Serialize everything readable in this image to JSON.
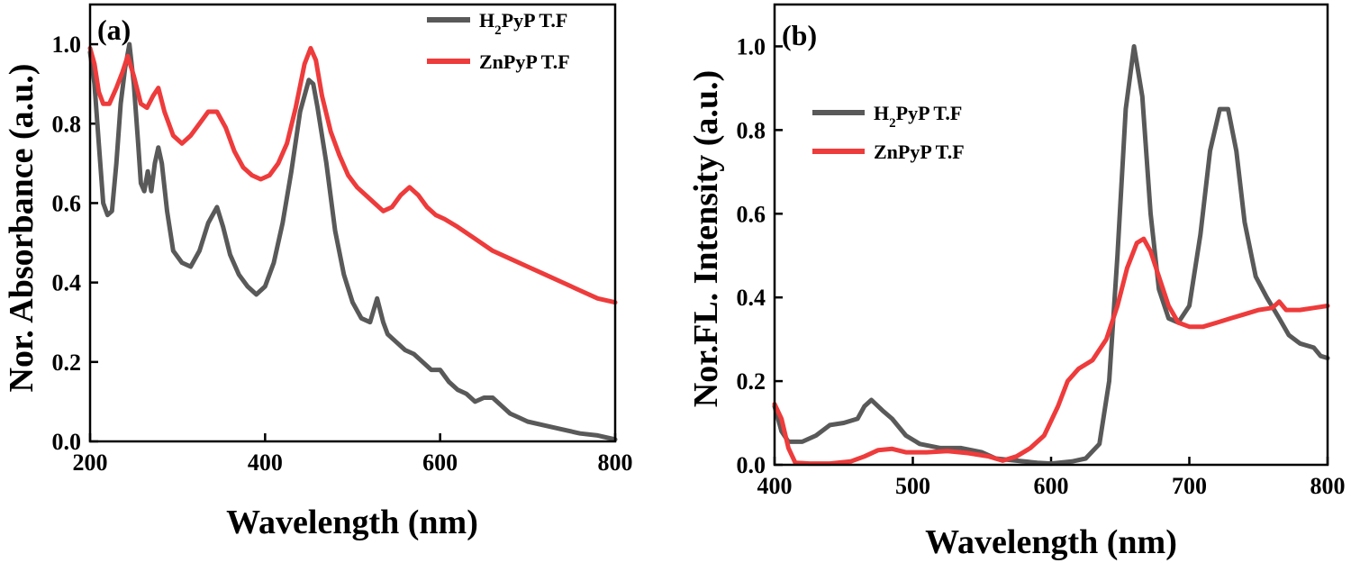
{
  "colors": {
    "h2pyp": "#595959",
    "znpyp": "#ee3b3b",
    "axis": "#000000"
  },
  "chart_data": [
    {
      "type": "line",
      "panel_label": "(a)",
      "xlabel": "Wavelength (nm)",
      "ylabel": "Nor. Absorbance (a.u.)",
      "xlim": [
        200,
        800
      ],
      "ylim": [
        0,
        1.1
      ],
      "xticks": [
        200,
        400,
        600,
        800
      ],
      "xtick_labels": [
        "200",
        "400",
        "600",
        "800"
      ],
      "yticks": [
        0,
        0.2,
        0.4,
        0.6,
        0.8,
        1.0
      ],
      "ytick_labels": [
        "0.0",
        "0.2",
        "0.4",
        "0.6",
        "0.8",
        "1.0"
      ],
      "grid": false,
      "legend_position": "top-right",
      "legend": [
        "H2PyP T.F",
        "ZnPyP T.F"
      ],
      "series": [
        {
          "name": "H2PyP T.F",
          "color": "#595959",
          "points": [
            [
              200,
              0.98
            ],
            [
              205,
              0.9
            ],
            [
              210,
              0.75
            ],
            [
              215,
              0.6
            ],
            [
              220,
              0.57
            ],
            [
              225,
              0.58
            ],
            [
              230,
              0.7
            ],
            [
              235,
              0.85
            ],
            [
              240,
              0.94
            ],
            [
              245,
              1.0
            ],
            [
              250,
              0.9
            ],
            [
              255,
              0.75
            ],
            [
              258,
              0.65
            ],
            [
              262,
              0.63
            ],
            [
              266,
              0.68
            ],
            [
              270,
              0.63
            ],
            [
              274,
              0.7
            ],
            [
              278,
              0.74
            ],
            [
              282,
              0.7
            ],
            [
              288,
              0.58
            ],
            [
              295,
              0.48
            ],
            [
              305,
              0.45
            ],
            [
              315,
              0.44
            ],
            [
              325,
              0.48
            ],
            [
              335,
              0.55
            ],
            [
              345,
              0.59
            ],
            [
              352,
              0.54
            ],
            [
              360,
              0.47
            ],
            [
              370,
              0.42
            ],
            [
              380,
              0.39
            ],
            [
              390,
              0.37
            ],
            [
              400,
              0.39
            ],
            [
              410,
              0.45
            ],
            [
              420,
              0.55
            ],
            [
              430,
              0.68
            ],
            [
              440,
              0.83
            ],
            [
              450,
              0.91
            ],
            [
              455,
              0.9
            ],
            [
              460,
              0.84
            ],
            [
              470,
              0.7
            ],
            [
              480,
              0.53
            ],
            [
              490,
              0.42
            ],
            [
              500,
              0.35
            ],
            [
              510,
              0.31
            ],
            [
              520,
              0.3
            ],
            [
              528,
              0.36
            ],
            [
              535,
              0.3
            ],
            [
              540,
              0.27
            ],
            [
              550,
              0.25
            ],
            [
              560,
              0.23
            ],
            [
              570,
              0.22
            ],
            [
              580,
              0.2
            ],
            [
              590,
              0.18
            ],
            [
              600,
              0.18
            ],
            [
              610,
              0.15
            ],
            [
              620,
              0.13
            ],
            [
              630,
              0.12
            ],
            [
              640,
              0.1
            ],
            [
              650,
              0.11
            ],
            [
              660,
              0.11
            ],
            [
              670,
              0.09
            ],
            [
              680,
              0.07
            ],
            [
              690,
              0.06
            ],
            [
              700,
              0.05
            ],
            [
              720,
              0.04
            ],
            [
              740,
              0.03
            ],
            [
              760,
              0.02
            ],
            [
              780,
              0.015
            ],
            [
              800,
              0.005
            ]
          ]
        },
        {
          "name": "ZnPyP T.F",
          "color": "#ee3b3b",
          "points": [
            [
              200,
              0.99
            ],
            [
              205,
              0.95
            ],
            [
              210,
              0.88
            ],
            [
              215,
              0.85
            ],
            [
              222,
              0.85
            ],
            [
              230,
              0.89
            ],
            [
              237,
              0.93
            ],
            [
              243,
              0.97
            ],
            [
              250,
              0.92
            ],
            [
              258,
              0.85
            ],
            [
              265,
              0.84
            ],
            [
              272,
              0.87
            ],
            [
              278,
              0.89
            ],
            [
              285,
              0.83
            ],
            [
              295,
              0.77
            ],
            [
              305,
              0.75
            ],
            [
              315,
              0.77
            ],
            [
              325,
              0.8
            ],
            [
              335,
              0.83
            ],
            [
              345,
              0.83
            ],
            [
              355,
              0.79
            ],
            [
              365,
              0.73
            ],
            [
              375,
              0.69
            ],
            [
              385,
              0.67
            ],
            [
              395,
              0.66
            ],
            [
              405,
              0.67
            ],
            [
              415,
              0.7
            ],
            [
              425,
              0.75
            ],
            [
              435,
              0.84
            ],
            [
              445,
              0.95
            ],
            [
              452,
              0.99
            ],
            [
              458,
              0.96
            ],
            [
              465,
              0.87
            ],
            [
              475,
              0.78
            ],
            [
              485,
              0.72
            ],
            [
              495,
              0.67
            ],
            [
              505,
              0.64
            ],
            [
              515,
              0.62
            ],
            [
              525,
              0.6
            ],
            [
              535,
              0.58
            ],
            [
              545,
              0.59
            ],
            [
              555,
              0.62
            ],
            [
              565,
              0.64
            ],
            [
              575,
              0.62
            ],
            [
              585,
              0.59
            ],
            [
              595,
              0.57
            ],
            [
              605,
              0.56
            ],
            [
              620,
              0.54
            ],
            [
              640,
              0.51
            ],
            [
              660,
              0.48
            ],
            [
              680,
              0.46
            ],
            [
              700,
              0.44
            ],
            [
              720,
              0.42
            ],
            [
              740,
              0.4
            ],
            [
              760,
              0.38
            ],
            [
              780,
              0.36
            ],
            [
              800,
              0.35
            ]
          ]
        }
      ]
    },
    {
      "type": "line",
      "panel_label": "(b)",
      "xlabel": "Wavelength (nm)",
      "ylabel": "Nor.FL. Intensity (a.u.)",
      "xlim": [
        400,
        800
      ],
      "ylim": [
        0,
        1.1
      ],
      "xticks": [
        400,
        500,
        600,
        700,
        800
      ],
      "xtick_labels": [
        "400",
        "500",
        "600",
        "700",
        "800"
      ],
      "yticks": [
        0,
        0.2,
        0.4,
        0.6,
        0.8,
        1.0
      ],
      "ytick_labels": [
        "0.0",
        "0.2",
        "0.4",
        "0.6",
        "0.8",
        "1.0"
      ],
      "grid": false,
      "legend_position": "upper-left",
      "legend": [
        "H2PyP T.F",
        "ZnPyP T.F"
      ],
      "series": [
        {
          "name": "H2PyP T.F",
          "color": "#595959",
          "points": [
            [
              400,
              0.14
            ],
            [
              405,
              0.08
            ],
            [
              410,
              0.055
            ],
            [
              420,
              0.055
            ],
            [
              430,
              0.07
            ],
            [
              440,
              0.095
            ],
            [
              450,
              0.1
            ],
            [
              460,
              0.11
            ],
            [
              465,
              0.14
            ],
            [
              470,
              0.155
            ],
            [
              478,
              0.13
            ],
            [
              485,
              0.11
            ],
            [
              495,
              0.07
            ],
            [
              505,
              0.05
            ],
            [
              520,
              0.04
            ],
            [
              535,
              0.04
            ],
            [
              550,
              0.03
            ],
            [
              560,
              0.015
            ],
            [
              575,
              0.01
            ],
            [
              590,
              0.005
            ],
            [
              600,
              0.003
            ],
            [
              615,
              0.008
            ],
            [
              625,
              0.015
            ],
            [
              635,
              0.05
            ],
            [
              642,
              0.2
            ],
            [
              648,
              0.5
            ],
            [
              654,
              0.85
            ],
            [
              660,
              1.0
            ],
            [
              666,
              0.88
            ],
            [
              672,
              0.6
            ],
            [
              678,
              0.42
            ],
            [
              685,
              0.35
            ],
            [
              692,
              0.34
            ],
            [
              700,
              0.38
            ],
            [
              708,
              0.55
            ],
            [
              715,
              0.75
            ],
            [
              722,
              0.85
            ],
            [
              728,
              0.85
            ],
            [
              734,
              0.75
            ],
            [
              740,
              0.58
            ],
            [
              748,
              0.45
            ],
            [
              756,
              0.4
            ],
            [
              765,
              0.35
            ],
            [
              772,
              0.31
            ],
            [
              780,
              0.29
            ],
            [
              790,
              0.28
            ],
            [
              795,
              0.26
            ],
            [
              800,
              0.255
            ]
          ]
        },
        {
          "name": "ZnPyP T.F",
          "color": "#ee3b3b",
          "points": [
            [
              400,
              0.145
            ],
            [
              405,
              0.11
            ],
            [
              410,
              0.04
            ],
            [
              415,
              0.005
            ],
            [
              425,
              0.003
            ],
            [
              440,
              0.003
            ],
            [
              455,
              0.008
            ],
            [
              465,
              0.02
            ],
            [
              475,
              0.035
            ],
            [
              485,
              0.038
            ],
            [
              495,
              0.03
            ],
            [
              510,
              0.03
            ],
            [
              525,
              0.033
            ],
            [
              540,
              0.028
            ],
            [
              555,
              0.02
            ],
            [
              565,
              0.01
            ],
            [
              575,
              0.02
            ],
            [
              585,
              0.04
            ],
            [
              595,
              0.07
            ],
            [
              605,
              0.14
            ],
            [
              612,
              0.2
            ],
            [
              620,
              0.23
            ],
            [
              630,
              0.25
            ],
            [
              640,
              0.3
            ],
            [
              648,
              0.38
            ],
            [
              655,
              0.47
            ],
            [
              662,
              0.53
            ],
            [
              667,
              0.54
            ],
            [
              672,
              0.51
            ],
            [
              678,
              0.45
            ],
            [
              685,
              0.38
            ],
            [
              692,
              0.34
            ],
            [
              700,
              0.33
            ],
            [
              710,
              0.33
            ],
            [
              720,
              0.34
            ],
            [
              730,
              0.35
            ],
            [
              740,
              0.36
            ],
            [
              750,
              0.37
            ],
            [
              760,
              0.375
            ],
            [
              765,
              0.39
            ],
            [
              770,
              0.37
            ],
            [
              780,
              0.37
            ],
            [
              790,
              0.375
            ],
            [
              800,
              0.38
            ]
          ]
        }
      ]
    }
  ]
}
